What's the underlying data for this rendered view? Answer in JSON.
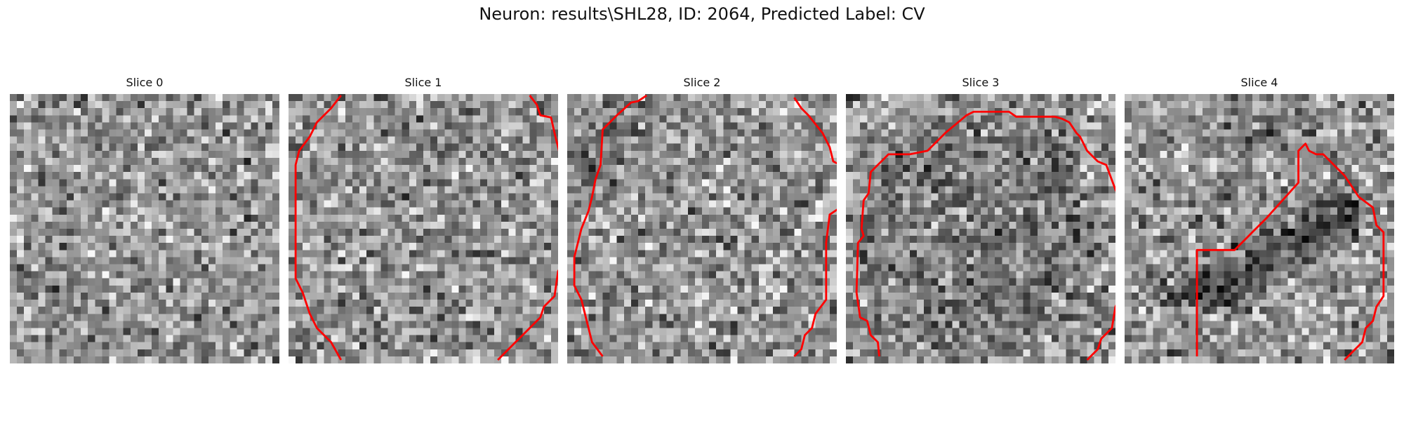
{
  "figure": {
    "title": "Neuron: results\\SHL28, ID: 2064, Predicted Label: CV"
  },
  "slices": [
    {
      "label": "Slice 0",
      "seed": 11,
      "dark_mask": "none",
      "contour": []
    },
    {
      "label": "Slice 1",
      "seed": 23,
      "dark_mask": "none",
      "contour": [
        [
          [
            7.4,
            0.2
          ],
          [
            6,
            2
          ],
          [
            4,
            4
          ],
          [
            3,
            6
          ],
          [
            1.5,
            8
          ],
          [
            1,
            10
          ],
          [
            1,
            20
          ],
          [
            1,
            26
          ],
          [
            2,
            28
          ],
          [
            3,
            31
          ],
          [
            4,
            33
          ],
          [
            6,
            35
          ],
          [
            7.4,
            37.5
          ]
        ],
        [
          [
            34,
            0.2
          ],
          [
            35,
            1.5
          ],
          [
            35.5,
            3
          ],
          [
            37,
            3.3
          ],
          [
            37.5,
            5.5
          ],
          [
            38,
            7.5
          ],
          [
            38.5,
            9.5
          ]
        ],
        [
          [
            39.5,
            22.5
          ],
          [
            38,
            25
          ],
          [
            37.5,
            28.5
          ],
          [
            36,
            30
          ],
          [
            35.5,
            31.5
          ],
          [
            34,
            33
          ],
          [
            32,
            35
          ],
          [
            29.5,
            37.5
          ]
        ]
      ]
    },
    {
      "label": "Slice 2",
      "seed": 37,
      "dark_mask": "left-top",
      "contour": [
        [
          [
            11.2,
            0.2
          ],
          [
            10,
            1
          ],
          [
            9,
            1.2
          ],
          [
            7,
            3
          ],
          [
            5,
            5
          ],
          [
            4.7,
            10
          ],
          [
            4,
            12
          ],
          [
            3.5,
            14.5
          ],
          [
            3,
            16.5
          ],
          [
            2,
            19
          ],
          [
            1.5,
            21
          ],
          [
            1,
            23
          ],
          [
            1,
            27
          ],
          [
            2,
            29
          ],
          [
            2.5,
            31
          ],
          [
            3,
            33
          ],
          [
            3.5,
            35
          ],
          [
            5,
            37
          ]
        ],
        [
          [
            32,
            0.5
          ],
          [
            33,
            2
          ],
          [
            34,
            3
          ],
          [
            36,
            5.5
          ],
          [
            37,
            7.5
          ],
          [
            37.5,
            9.5
          ],
          [
            38.5,
            10
          ]
        ],
        [
          [
            38.5,
            16
          ],
          [
            37,
            17
          ],
          [
            36.5,
            21
          ],
          [
            36.5,
            29
          ],
          [
            35,
            31
          ],
          [
            34.5,
            33
          ],
          [
            33.5,
            34
          ],
          [
            33,
            36
          ],
          [
            32,
            37
          ]
        ]
      ]
    },
    {
      "label": "Slice 3",
      "seed": 53,
      "dark_mask": "center",
      "contour": [
        [
          [
            38.5,
            14.5
          ],
          [
            38,
            13.5
          ],
          [
            36.7,
            10
          ],
          [
            35.5,
            9.5
          ],
          [
            34,
            8
          ],
          [
            33,
            6
          ],
          [
            32.5,
            5.5
          ],
          [
            31.5,
            4
          ],
          [
            30.5,
            3.5
          ],
          [
            29.5,
            3.2
          ],
          [
            24,
            3.2
          ],
          [
            23,
            2.5
          ],
          [
            18,
            2.5
          ],
          [
            17,
            3
          ],
          [
            14,
            5.5
          ],
          [
            11.5,
            8
          ],
          [
            9,
            8.5
          ],
          [
            6,
            8.5
          ],
          [
            5.5,
            9
          ],
          [
            4.5,
            10
          ],
          [
            3.5,
            11
          ],
          [
            3.2,
            14
          ],
          [
            2.5,
            15
          ],
          [
            2.2,
            19
          ],
          [
            2.5,
            20
          ],
          [
            1.7,
            21
          ],
          [
            1.5,
            28
          ],
          [
            2,
            31.5
          ],
          [
            3,
            32
          ],
          [
            3.5,
            34
          ],
          [
            4.5,
            35
          ],
          [
            4.7,
            37
          ]
        ],
        [
          [
            38.5,
            29
          ],
          [
            38,
            30
          ],
          [
            37.5,
            33
          ],
          [
            36,
            34.5
          ],
          [
            35.5,
            36
          ],
          [
            34,
            37.5
          ]
        ]
      ]
    },
    {
      "label": "Slice 4",
      "seed": 71,
      "dark_mask": "diagonal-band",
      "contour": [
        [
          [
            10.2,
            37
          ],
          [
            10.2,
            22
          ],
          [
            12,
            22
          ],
          [
            15.5,
            22
          ],
          [
            18,
            19.5
          ],
          [
            20,
            17.5
          ],
          [
            24.5,
            12.5
          ],
          [
            24.5,
            8
          ],
          [
            25,
            7.5
          ],
          [
            25.5,
            7
          ],
          [
            26,
            8
          ],
          [
            27,
            8.5
          ],
          [
            28,
            8.5
          ],
          [
            31,
            11.5
          ],
          [
            33,
            14.5
          ],
          [
            35,
            16
          ],
          [
            35.5,
            18.5
          ],
          [
            36.5,
            19.5
          ],
          [
            36.5,
            28.5
          ],
          [
            35.5,
            30
          ],
          [
            35,
            32
          ],
          [
            34,
            33
          ],
          [
            33.5,
            35
          ],
          [
            32.5,
            36
          ],
          [
            31,
            37.5
          ]
        ]
      ]
    }
  ]
}
